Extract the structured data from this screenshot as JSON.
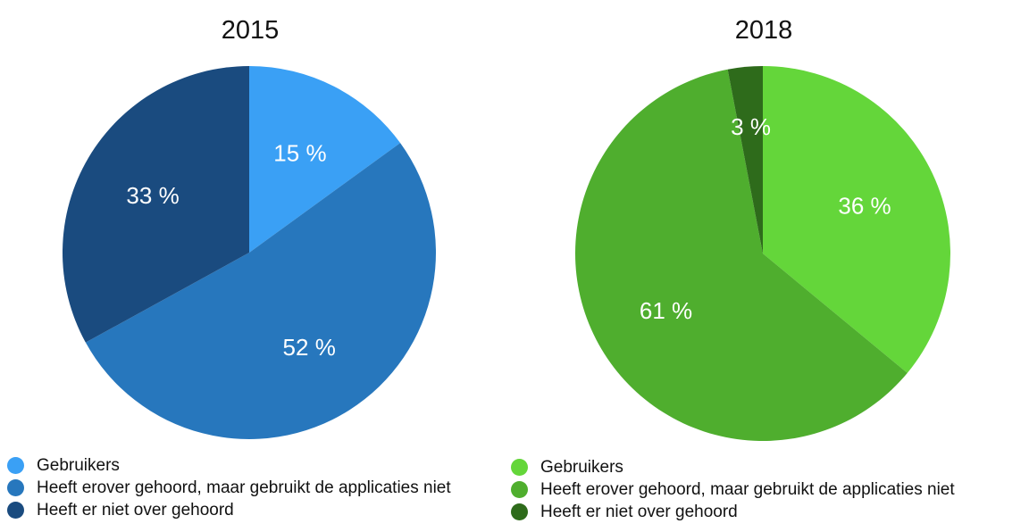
{
  "chart_data": [
    {
      "type": "pie",
      "title": "2015",
      "categories": [
        "Gebruikers",
        "Heeft erover gehoord, maar gebruikt de applicaties niet",
        "Heeft er niet over gehoord"
      ],
      "values": [
        15,
        52,
        33
      ],
      "labels": [
        "15 %",
        "52 %",
        "33 %"
      ],
      "colors": [
        "#3aa0f5",
        "#2777bd",
        "#1a4b7f"
      ],
      "legend": "bottom-left"
    },
    {
      "type": "pie",
      "title": "2018",
      "categories": [
        "Gebruikers",
        "Heeft erover gehoord, maar gebruikt de applicaties niet",
        "Heeft er niet over gehoord"
      ],
      "values": [
        36,
        61,
        3
      ],
      "labels": [
        "36 %",
        "61 %",
        "3 %"
      ],
      "colors": [
        "#64d63a",
        "#4fae2e",
        "#2e6b1b"
      ],
      "legend": "bottom-left"
    }
  ]
}
